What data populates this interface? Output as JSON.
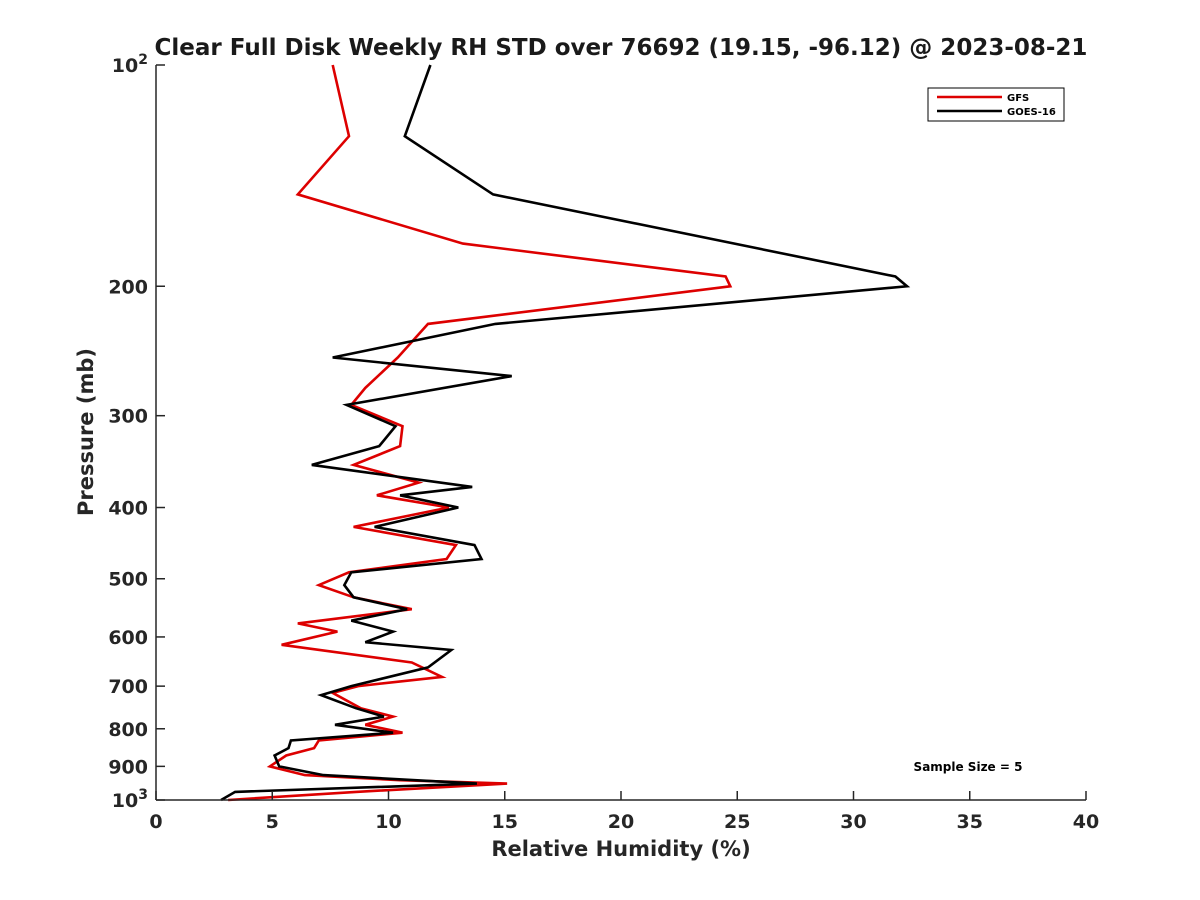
{
  "chart_data": {
    "type": "line",
    "title": "Clear Full Disk Weekly RH STD over 76692 (19.15, -96.12) @ 2023-08-21",
    "xlabel": "Relative Humidity (%)",
    "ylabel": "Pressure (mb)",
    "xlim": [
      0,
      40
    ],
    "ylim": [
      100,
      1000
    ],
    "yscale": "log",
    "y_reversed": true,
    "x_ticks": [
      {
        "value": 0,
        "label": "0"
      },
      {
        "value": 5,
        "label": "5"
      },
      {
        "value": 10,
        "label": "10"
      },
      {
        "value": 15,
        "label": "15"
      },
      {
        "value": 20,
        "label": "20"
      },
      {
        "value": 25,
        "label": "25"
      },
      {
        "value": 30,
        "label": "30"
      },
      {
        "value": 35,
        "label": "35"
      },
      {
        "value": 40,
        "label": "40"
      }
    ],
    "y_ticks": [
      {
        "value": 100,
        "base": "10",
        "exp": "2"
      },
      {
        "value": 200,
        "label": "200"
      },
      {
        "value": 300,
        "label": "300"
      },
      {
        "value": 400,
        "label": "400"
      },
      {
        "value": 500,
        "label": "500"
      },
      {
        "value": 600,
        "label": "600"
      },
      {
        "value": 700,
        "label": "700"
      },
      {
        "value": 800,
        "label": "800"
      },
      {
        "value": 900,
        "label": "900"
      },
      {
        "value": 1000,
        "base": "10",
        "exp": "3"
      }
    ],
    "legend_position": "top-right",
    "annotation": "Sample Size = 5",
    "series": [
      {
        "name": "GFS",
        "color": "#dd0000",
        "points": [
          [
            7.6,
            100
          ],
          [
            8.3,
            125
          ],
          [
            6.1,
            150
          ],
          [
            13.2,
            175
          ],
          [
            24.5,
            194
          ],
          [
            24.7,
            200
          ],
          [
            11.7,
            225
          ],
          [
            10.4,
            250
          ],
          [
            9.0,
            275
          ],
          [
            8.4,
            290
          ],
          [
            10.6,
            310
          ],
          [
            10.5,
            330
          ],
          [
            8.5,
            350
          ],
          [
            11.3,
            370
          ],
          [
            9.5,
            385
          ],
          [
            12.6,
            400
          ],
          [
            8.5,
            425
          ],
          [
            12.9,
            450
          ],
          [
            12.5,
            470
          ],
          [
            8.3,
            490
          ],
          [
            7.0,
            510
          ],
          [
            8.5,
            530
          ],
          [
            11.0,
            550
          ],
          [
            6.1,
            575
          ],
          [
            7.8,
            590
          ],
          [
            5.4,
            615
          ],
          [
            11.0,
            650
          ],
          [
            12.3,
            680
          ],
          [
            8.7,
            700
          ],
          [
            7.6,
            715
          ],
          [
            8.8,
            750
          ],
          [
            10.2,
            770
          ],
          [
            9.0,
            790
          ],
          [
            10.6,
            810
          ],
          [
            7.0,
            830
          ],
          [
            6.8,
            850
          ],
          [
            5.6,
            870
          ],
          [
            4.9,
            900
          ],
          [
            6.4,
            925
          ],
          [
            10.5,
            940
          ],
          [
            15.1,
            950
          ],
          [
            8.6,
            975
          ],
          [
            3.1,
            1000
          ]
        ]
      },
      {
        "name": "GOES-16",
        "color": "#000000",
        "points": [
          [
            11.8,
            100
          ],
          [
            10.7,
            125
          ],
          [
            14.5,
            150
          ],
          [
            31.8,
            194
          ],
          [
            32.3,
            200
          ],
          [
            14.6,
            225
          ],
          [
            7.6,
            250
          ],
          [
            15.3,
            265
          ],
          [
            8.2,
            290
          ],
          [
            10.3,
            310
          ],
          [
            9.6,
            330
          ],
          [
            6.7,
            350
          ],
          [
            13.6,
            375
          ],
          [
            10.5,
            385
          ],
          [
            13.0,
            400
          ],
          [
            9.4,
            425
          ],
          [
            13.7,
            450
          ],
          [
            14.0,
            470
          ],
          [
            8.4,
            490
          ],
          [
            8.1,
            510
          ],
          [
            8.5,
            530
          ],
          [
            10.8,
            550
          ],
          [
            8.4,
            570
          ],
          [
            10.2,
            590
          ],
          [
            9.0,
            610
          ],
          [
            12.7,
            625
          ],
          [
            11.7,
            660
          ],
          [
            8.4,
            700
          ],
          [
            7.1,
            720
          ],
          [
            8.6,
            750
          ],
          [
            9.8,
            770
          ],
          [
            7.7,
            790
          ],
          [
            10.2,
            810
          ],
          [
            5.8,
            830
          ],
          [
            5.7,
            850
          ],
          [
            5.1,
            870
          ],
          [
            5.3,
            900
          ],
          [
            7.2,
            925
          ],
          [
            13.8,
            950
          ],
          [
            3.4,
            975
          ],
          [
            2.8,
            1000
          ]
        ]
      }
    ]
  }
}
